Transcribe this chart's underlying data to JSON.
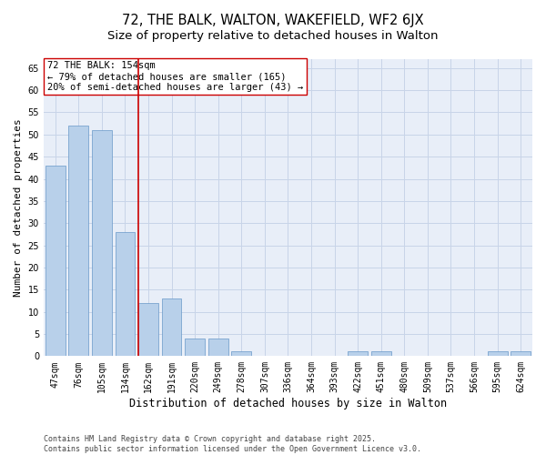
{
  "title": "72, THE BALK, WALTON, WAKEFIELD, WF2 6JX",
  "subtitle": "Size of property relative to detached houses in Walton",
  "xlabel": "Distribution of detached houses by size in Walton",
  "ylabel": "Number of detached properties",
  "categories": [
    "47sqm",
    "76sqm",
    "105sqm",
    "134sqm",
    "162sqm",
    "191sqm",
    "220sqm",
    "249sqm",
    "278sqm",
    "307sqm",
    "336sqm",
    "364sqm",
    "393sqm",
    "422sqm",
    "451sqm",
    "480sqm",
    "509sqm",
    "537sqm",
    "566sqm",
    "595sqm",
    "624sqm"
  ],
  "values": [
    43,
    52,
    51,
    28,
    12,
    13,
    4,
    4,
    1,
    0,
    0,
    0,
    0,
    1,
    1,
    0,
    0,
    0,
    0,
    1,
    1
  ],
  "bar_color": "#b8d0ea",
  "bar_edgecolor": "#6898c8",
  "vline_color": "#cc0000",
  "annotation_text": "72 THE BALK: 154sqm\n← 79% of detached houses are smaller (165)\n20% of semi-detached houses are larger (43) →",
  "annotation_box_color": "#cc0000",
  "ylim": [
    0,
    67
  ],
  "yticks": [
    0,
    5,
    10,
    15,
    20,
    25,
    30,
    35,
    40,
    45,
    50,
    55,
    60,
    65
  ],
  "grid_color": "#c8d4e8",
  "background_color": "#e8eef8",
  "footer": "Contains HM Land Registry data © Crown copyright and database right 2025.\nContains public sector information licensed under the Open Government Licence v3.0.",
  "title_fontsize": 10.5,
  "subtitle_fontsize": 9.5,
  "xlabel_fontsize": 8.5,
  "ylabel_fontsize": 8,
  "tick_fontsize": 7,
  "annotation_fontsize": 7.5,
  "footer_fontsize": 6
}
